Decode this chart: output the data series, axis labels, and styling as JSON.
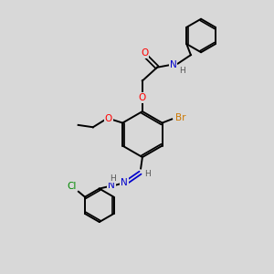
{
  "background_color": "#d8d8d8",
  "bond_width": 1.4,
  "atom_colors": {
    "O": "#ff0000",
    "N": "#0000cc",
    "Br": "#cc7700",
    "Cl": "#008800",
    "H": "#555555",
    "C": "#000000"
  },
  "figsize": [
    3.0,
    3.0
  ],
  "dpi": 100,
  "xlim": [
    0,
    10
  ],
  "ylim": [
    0,
    10
  ]
}
